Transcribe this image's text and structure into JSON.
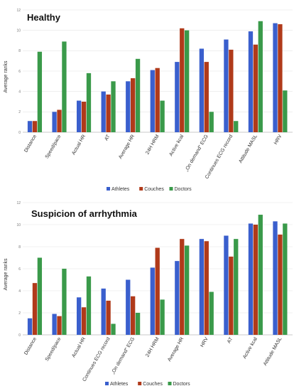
{
  "chart_data": [
    {
      "type": "bar",
      "title": "Healthy",
      "ylabel": "Average ranks",
      "xlabel": "",
      "ylim": [
        0,
        12
      ],
      "yticks": [
        0,
        2,
        4,
        6,
        8,
        10,
        12
      ],
      "grid": true,
      "legend": "below",
      "categories": [
        "Distance",
        "Speed/pace",
        "Actual HR",
        "AT",
        "Average HR",
        "24H HRM",
        "Active kcal",
        "„On demand\" ECG",
        "Continues ECG record",
        "Attitude MASL",
        "HRV"
      ],
      "series": [
        {
          "name": "Athletes",
          "color": "#3a5fcd",
          "values": [
            1.1,
            2.0,
            3.1,
            4.0,
            5.0,
            6.1,
            6.9,
            8.2,
            9.1,
            9.9,
            10.7
          ]
        },
        {
          "name": "Couches",
          "color": "#b03a1a",
          "values": [
            1.1,
            2.2,
            3.0,
            3.7,
            5.3,
            6.3,
            10.2,
            6.9,
            8.1,
            8.6,
            10.6
          ]
        },
        {
          "name": "Doctors",
          "color": "#3a9a4a",
          "values": [
            7.9,
            8.9,
            5.8,
            5.0,
            7.2,
            3.1,
            10.0,
            2.0,
            1.1,
            10.9,
            4.1
          ]
        }
      ]
    },
    {
      "type": "bar",
      "title": "Suspicion of arrhythmia",
      "ylabel": "Average ranks",
      "xlabel": "",
      "ylim": [
        0,
        12
      ],
      "yticks": [
        0,
        2,
        4,
        6,
        8,
        10,
        12
      ],
      "grid": true,
      "legend": "below",
      "categories": [
        "Distance",
        "Speed/pace",
        "Actual HR",
        "Continues ECG record",
        "„On demand\" ECG",
        "24H HRM",
        "Average HR",
        "HRV",
        "AT",
        "Active kcal",
        "Attitude MASL"
      ],
      "series": [
        {
          "name": "Athletes",
          "color": "#3a5fcd",
          "values": [
            1.5,
            1.9,
            3.4,
            4.2,
            5.0,
            6.1,
            6.7,
            8.7,
            9.0,
            10.1,
            10.3
          ]
        },
        {
          "name": "Couches",
          "color": "#b03a1a",
          "values": [
            4.7,
            1.7,
            2.5,
            3.1,
            3.5,
            7.9,
            8.7,
            8.5,
            7.1,
            10.0,
            9.1
          ]
        },
        {
          "name": "Doctors",
          "color": "#3a9a4a",
          "values": [
            7.0,
            6.0,
            5.3,
            1.0,
            2.0,
            3.2,
            8.1,
            3.9,
            8.7,
            10.9,
            10.1
          ]
        }
      ]
    }
  ]
}
